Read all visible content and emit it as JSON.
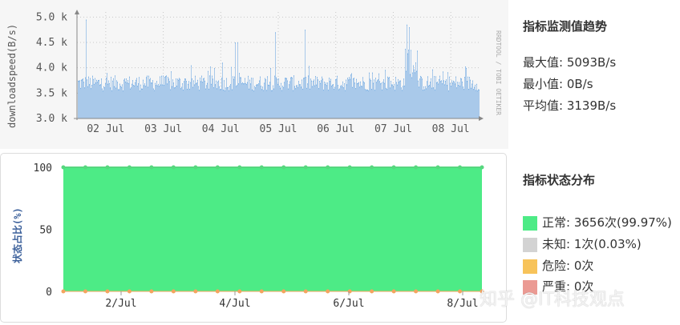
{
  "top_chart": {
    "ylabel": "downloadspeed(B/s)",
    "watermark": "RRDTOOL / TOBI OETIKER",
    "y_ticks": [
      "5.0 k",
      "4.5 k",
      "4.0 k",
      "3.5 k",
      "3.0 k"
    ],
    "x_ticks": [
      "02 Jul",
      "03 Jul",
      "04 Jul",
      "05 Jul",
      "06 Jul",
      "07 Jul",
      "08 Jul"
    ],
    "colors": {
      "fill": "#a9c9ea",
      "line": "#7fb3e6",
      "grid_dot": "#c8c8c8"
    }
  },
  "trend": {
    "title": "指标监测值趋势",
    "max": "最大值: 5093B/s",
    "min": "最小值: 0B/s",
    "avg": "平均值: 3139B/s"
  },
  "bottom_chart": {
    "ylabel": "状态占比(%)",
    "y_ticks": [
      "100",
      "50",
      "0"
    ],
    "x_ticks": [
      "2/Jul",
      "4/Jul",
      "6/Jul",
      "8/Jul"
    ],
    "colors": {
      "area": "#4deb86",
      "top_line": "#57d77f",
      "bottom_markers": "#f4a460"
    }
  },
  "distribution": {
    "title": "指标状态分布",
    "items": [
      {
        "label": "正常: 3656次(99.97%)",
        "color": "#4deb86"
      },
      {
        "label": "未知: 1次(0.03%)",
        "color": "#d3d3d3"
      },
      {
        "label": "危险: 0次",
        "color": "#f7c35a"
      },
      {
        "label": "严重: 0次",
        "color": "#eb9a93"
      }
    ]
  },
  "watermark_text": "知乎 @IT科技观点",
  "chart_data": [
    {
      "type": "area",
      "title": "",
      "xlabel": "",
      "ylabel": "downloadspeed(B/s)",
      "ylim": [
        3000,
        5100
      ],
      "x_range": [
        "01 Jul",
        "08 Jul"
      ],
      "categories": [
        "02 Jul",
        "03 Jul",
        "04 Jul",
        "05 Jul",
        "06 Jul",
        "07 Jul",
        "08 Jul"
      ],
      "summary": {
        "max": 5093,
        "min": 0,
        "avg": 3139
      },
      "spikes": [
        {
          "x": "01 Jul",
          "y": 4950
        },
        {
          "x": "03 Jul",
          "y": 4100
        },
        {
          "x": "04 Jul",
          "y": 4500
        },
        {
          "x": "04 Jul",
          "y": 4500
        },
        {
          "x": "05 Jul",
          "y": 4700
        },
        {
          "x": "05 Jul",
          "y": 4750
        },
        {
          "x": "07 Jul",
          "y": 4850
        },
        {
          "x": "07 Jul",
          "y": 4800
        }
      ],
      "grid": true
    },
    {
      "type": "area",
      "title": "",
      "ylabel": "状态占比(%)",
      "ylim": [
        0,
        100
      ],
      "categories": [
        "2/Jul",
        "4/Jul",
        "6/Jul",
        "8/Jul"
      ],
      "series": [
        {
          "name": "正常",
          "value": 99.97
        },
        {
          "name": "未知",
          "value": 0.03
        }
      ],
      "grid": false
    }
  ]
}
